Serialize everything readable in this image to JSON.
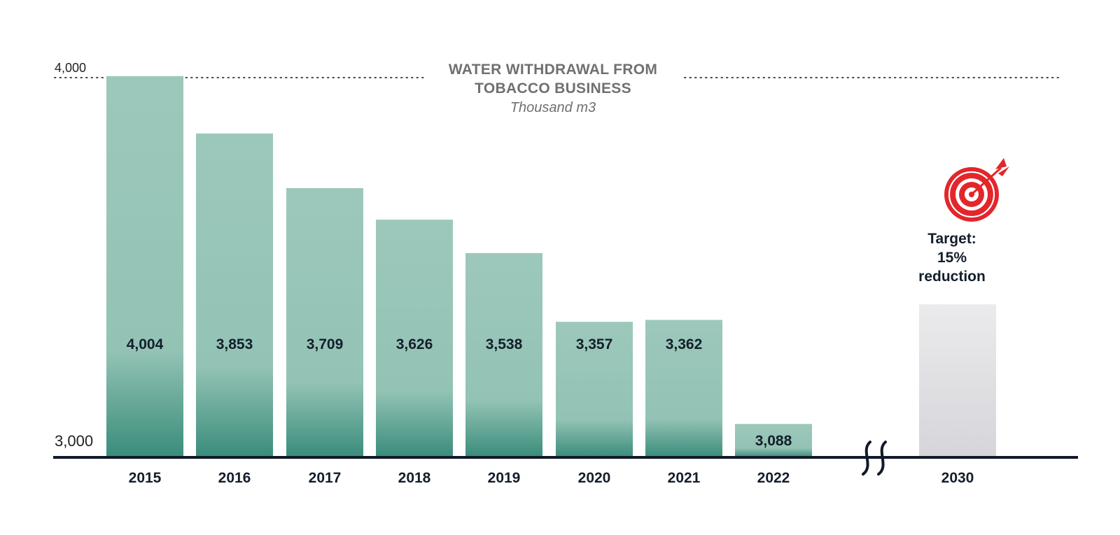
{
  "chart_data": {
    "type": "bar",
    "title": "WATER WITHDRAWAL FROM TOBACCO BUSINESS",
    "subtitle": "Thousand m3",
    "categories": [
      "2015",
      "2016",
      "2017",
      "2018",
      "2019",
      "2020",
      "2021",
      "2022",
      "2030"
    ],
    "series": [
      {
        "values": [
          4004,
          3853,
          3709,
          3626,
          3538,
          3357,
          3362,
          3088,
          null
        ]
      }
    ],
    "data_labels": [
      "4,004",
      "3,853",
      "3,709",
      "3,626",
      "3,538",
      "3,357",
      "3,362",
      "3,088",
      ""
    ],
    "ylim": [
      3000,
      4000
    ],
    "y_tick_labels": [
      "3,000",
      "4,000"
    ],
    "axis_break_between": [
      "2022",
      "2030"
    ],
    "target": {
      "year": "2030",
      "label_lines": [
        "Target:",
        "15%",
        "reduction"
      ],
      "icon": "target-icon",
      "bar_color": "#dcdce0"
    },
    "grid": false,
    "colors": {
      "bar_top": "#9cc8bb",
      "bar_bottom": "#3a8c7b",
      "axis": "#111a28",
      "target_icon": "#e3262b",
      "title": "#707070",
      "value_text": "#141e2b"
    }
  }
}
